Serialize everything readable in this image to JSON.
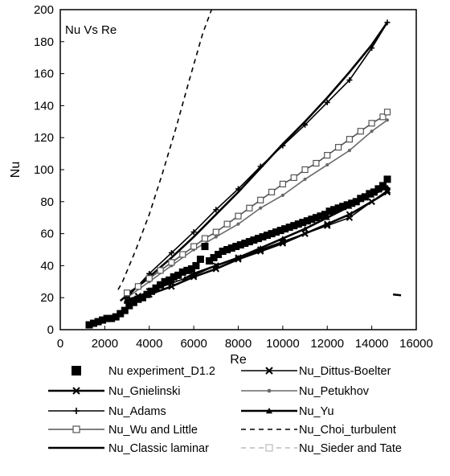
{
  "chart_data": {
    "type": "scatter",
    "title": "Nu Vs Re",
    "xlabel": "Re",
    "ylabel": "Nu",
    "xlim": [
      0,
      16000
    ],
    "ylim": [
      0,
      200
    ],
    "xticks": [
      0,
      2000,
      4000,
      6000,
      8000,
      10000,
      12000,
      14000,
      16000
    ],
    "yticks": [
      0,
      20,
      40,
      60,
      80,
      100,
      120,
      140,
      160,
      180,
      200
    ],
    "grid": false,
    "legend_position": "bottom",
    "series": [
      {
        "name": "Nu experiment_D1.2",
        "marker": "square-filled",
        "line": "none",
        "color": "#000000",
        "x": [
          1300,
          1500,
          1700,
          1900,
          2100,
          2300,
          2500,
          2700,
          2900,
          3100,
          3300,
          3500,
          3700,
          3900,
          4100,
          4300,
          4500,
          4700,
          4900,
          5100,
          5300,
          5500,
          5700,
          5900,
          6100,
          6300,
          6500,
          6700,
          6900,
          7100,
          7300,
          7500,
          7700,
          7900,
          8100,
          8300,
          8500,
          8700,
          8900,
          9100,
          9300,
          9500,
          9700,
          9900,
          10100,
          10300,
          10500,
          10700,
          10900,
          11100,
          11300,
          11500,
          11700,
          11900,
          12100,
          12300,
          12500,
          12700,
          12900,
          13100,
          13300,
          13500,
          13700,
          13900,
          14100,
          14300,
          14500,
          14700
        ],
        "y": [
          3,
          4,
          5,
          6,
          7,
          7,
          8,
          10,
          12,
          15,
          17,
          19,
          20,
          22,
          24,
          26,
          28,
          30,
          31,
          33,
          34,
          36,
          37,
          38,
          40,
          44,
          52,
          43,
          45,
          47,
          49,
          50,
          51,
          52,
          53,
          54,
          55,
          56,
          57,
          58,
          59,
          60,
          61,
          62,
          63,
          64,
          65,
          66,
          67,
          68,
          69,
          70,
          71,
          72,
          74,
          75,
          76,
          77,
          78,
          79,
          80,
          82,
          83,
          85,
          86,
          88,
          90,
          94
        ]
      },
      {
        "name": "Nu_Dittus-Boelter",
        "marker": "x",
        "line": "solid",
        "color": "#000000",
        "x": [
          3000,
          3500,
          4000,
          5000,
          6000,
          7000,
          8000,
          9000,
          10000,
          11000,
          12000,
          13000,
          14000,
          14700
        ],
        "y": [
          19,
          21,
          24,
          29,
          34,
          40,
          45,
          50,
          55,
          60,
          65,
          70,
          80,
          87
        ]
      },
      {
        "name": "Nu_Gnielinski",
        "marker": "x",
        "line": "solid",
        "color": "#000000",
        "x": [
          3000,
          4000,
          5000,
          6000,
          7000,
          8000,
          9000,
          10000,
          11000,
          12000,
          13000,
          14000,
          14700
        ],
        "y": [
          18,
          22,
          27,
          33,
          38,
          44,
          49,
          54,
          60,
          66,
          72,
          80,
          86
        ]
      },
      {
        "name": "Nu_Petukhov",
        "marker": "dot",
        "line": "solid",
        "color": "#6a6a6a",
        "x": [
          3000,
          4000,
          5000,
          6000,
          7000,
          8000,
          9000,
          10000,
          11000,
          12000,
          13000,
          14000,
          14700
        ],
        "y": [
          20,
          30,
          40,
          50,
          58,
          66,
          76,
          84,
          94,
          103,
          112,
          124,
          131
        ]
      },
      {
        "name": "Nu_Adams",
        "marker": "plus",
        "line": "solid",
        "color": "#000000",
        "x": [
          3000,
          4000,
          5000,
          6000,
          7000,
          8000,
          9000,
          10000,
          11000,
          12000,
          13000,
          14000,
          14700
        ],
        "y": [
          20,
          35,
          48,
          61,
          75,
          88,
          102,
          115,
          128,
          142,
          156,
          176,
          192
        ]
      },
      {
        "name": "Nu_Yu",
        "marker": "triangle-filled",
        "line": "solid",
        "color": "#000000",
        "x": [
          5600,
          6000,
          7000,
          8000,
          9000,
          10000,
          11000,
          12000,
          13000,
          14000,
          14700
        ],
        "y": [
          32,
          35,
          40,
          45,
          51,
          57,
          63,
          70,
          77,
          84,
          89
        ]
      },
      {
        "name": "Nu_Wu and Little",
        "marker": "square-open",
        "line": "solid",
        "color": "#555555",
        "x": [
          3000,
          3500,
          4000,
          4500,
          5000,
          5500,
          6000,
          6500,
          7000,
          7500,
          8000,
          8500,
          9000,
          9500,
          10000,
          10500,
          11000,
          11500,
          12000,
          12500,
          13000,
          13500,
          14000,
          14500,
          14700
        ],
        "y": [
          23,
          27,
          32,
          37,
          42,
          47,
          52,
          57,
          61,
          66,
          71,
          76,
          81,
          86,
          91,
          95,
          100,
          104,
          109,
          114,
          119,
          124,
          129,
          133,
          136
        ]
      },
      {
        "name": "Nu_Choi_turbulent",
        "marker": "none",
        "line": "dashed",
        "color": "#000000",
        "x": [
          2600,
          2800,
          3400,
          4000,
          4600,
          5200,
          5800,
          6400,
          6800
        ],
        "y": [
          25,
          30,
          50,
          72,
          98,
          126,
          156,
          185,
          200
        ]
      },
      {
        "name": "Nu_Classic laminar",
        "marker": "none",
        "line": "solid",
        "color": "#000000",
        "x": [
          2700,
          4000,
          5000,
          6000,
          7000,
          8000,
          9000,
          10000,
          11000,
          12000,
          13000,
          14000,
          14700
        ],
        "y": [
          18,
          33,
          45,
          58,
          72,
          86,
          101,
          116,
          130,
          145,
          161,
          178,
          192
        ]
      },
      {
        "name": "Nu_Sieder and Tate",
        "marker": "square-open",
        "line": "dashed",
        "color": "#bbbbbb",
        "x": [],
        "y": []
      }
    ],
    "annotation": {
      "x": 15100,
      "y": 22,
      "text": ""
    }
  }
}
